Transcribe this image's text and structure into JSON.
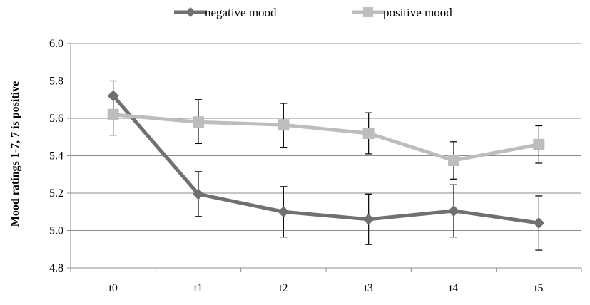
{
  "chart_data": {
    "type": "line",
    "categories": [
      "t0",
      "t1",
      "t2",
      "t3",
      "t4",
      "t5"
    ],
    "ylabel": "Mood ratings 1-7, 7 is positive",
    "ylim": [
      4.8,
      6.0
    ],
    "yticks": [
      "4.8",
      "5.0",
      "5.2",
      "5.4",
      "5.6",
      "5.8",
      "6.0"
    ],
    "grid": true,
    "legend_position": "top",
    "series": [
      {
        "name": "negative mood",
        "color": "#707070",
        "marker": "diamond",
        "values": [
          5.72,
          5.195,
          5.1,
          5.06,
          5.105,
          5.04
        ],
        "error_low": [
          5.635,
          5.075,
          4.965,
          4.925,
          4.965,
          4.895
        ],
        "error_high": [
          5.8,
          5.315,
          5.235,
          5.195,
          5.245,
          5.185
        ]
      },
      {
        "name": "positive mood",
        "color": "#bdbdbd",
        "marker": "square",
        "values": [
          5.62,
          5.58,
          5.565,
          5.52,
          5.375,
          5.46
        ],
        "error_low": [
          5.51,
          5.465,
          5.445,
          5.41,
          5.275,
          5.36
        ],
        "error_high": [
          5.73,
          5.7,
          5.68,
          5.63,
          5.475,
          5.56
        ]
      }
    ]
  }
}
